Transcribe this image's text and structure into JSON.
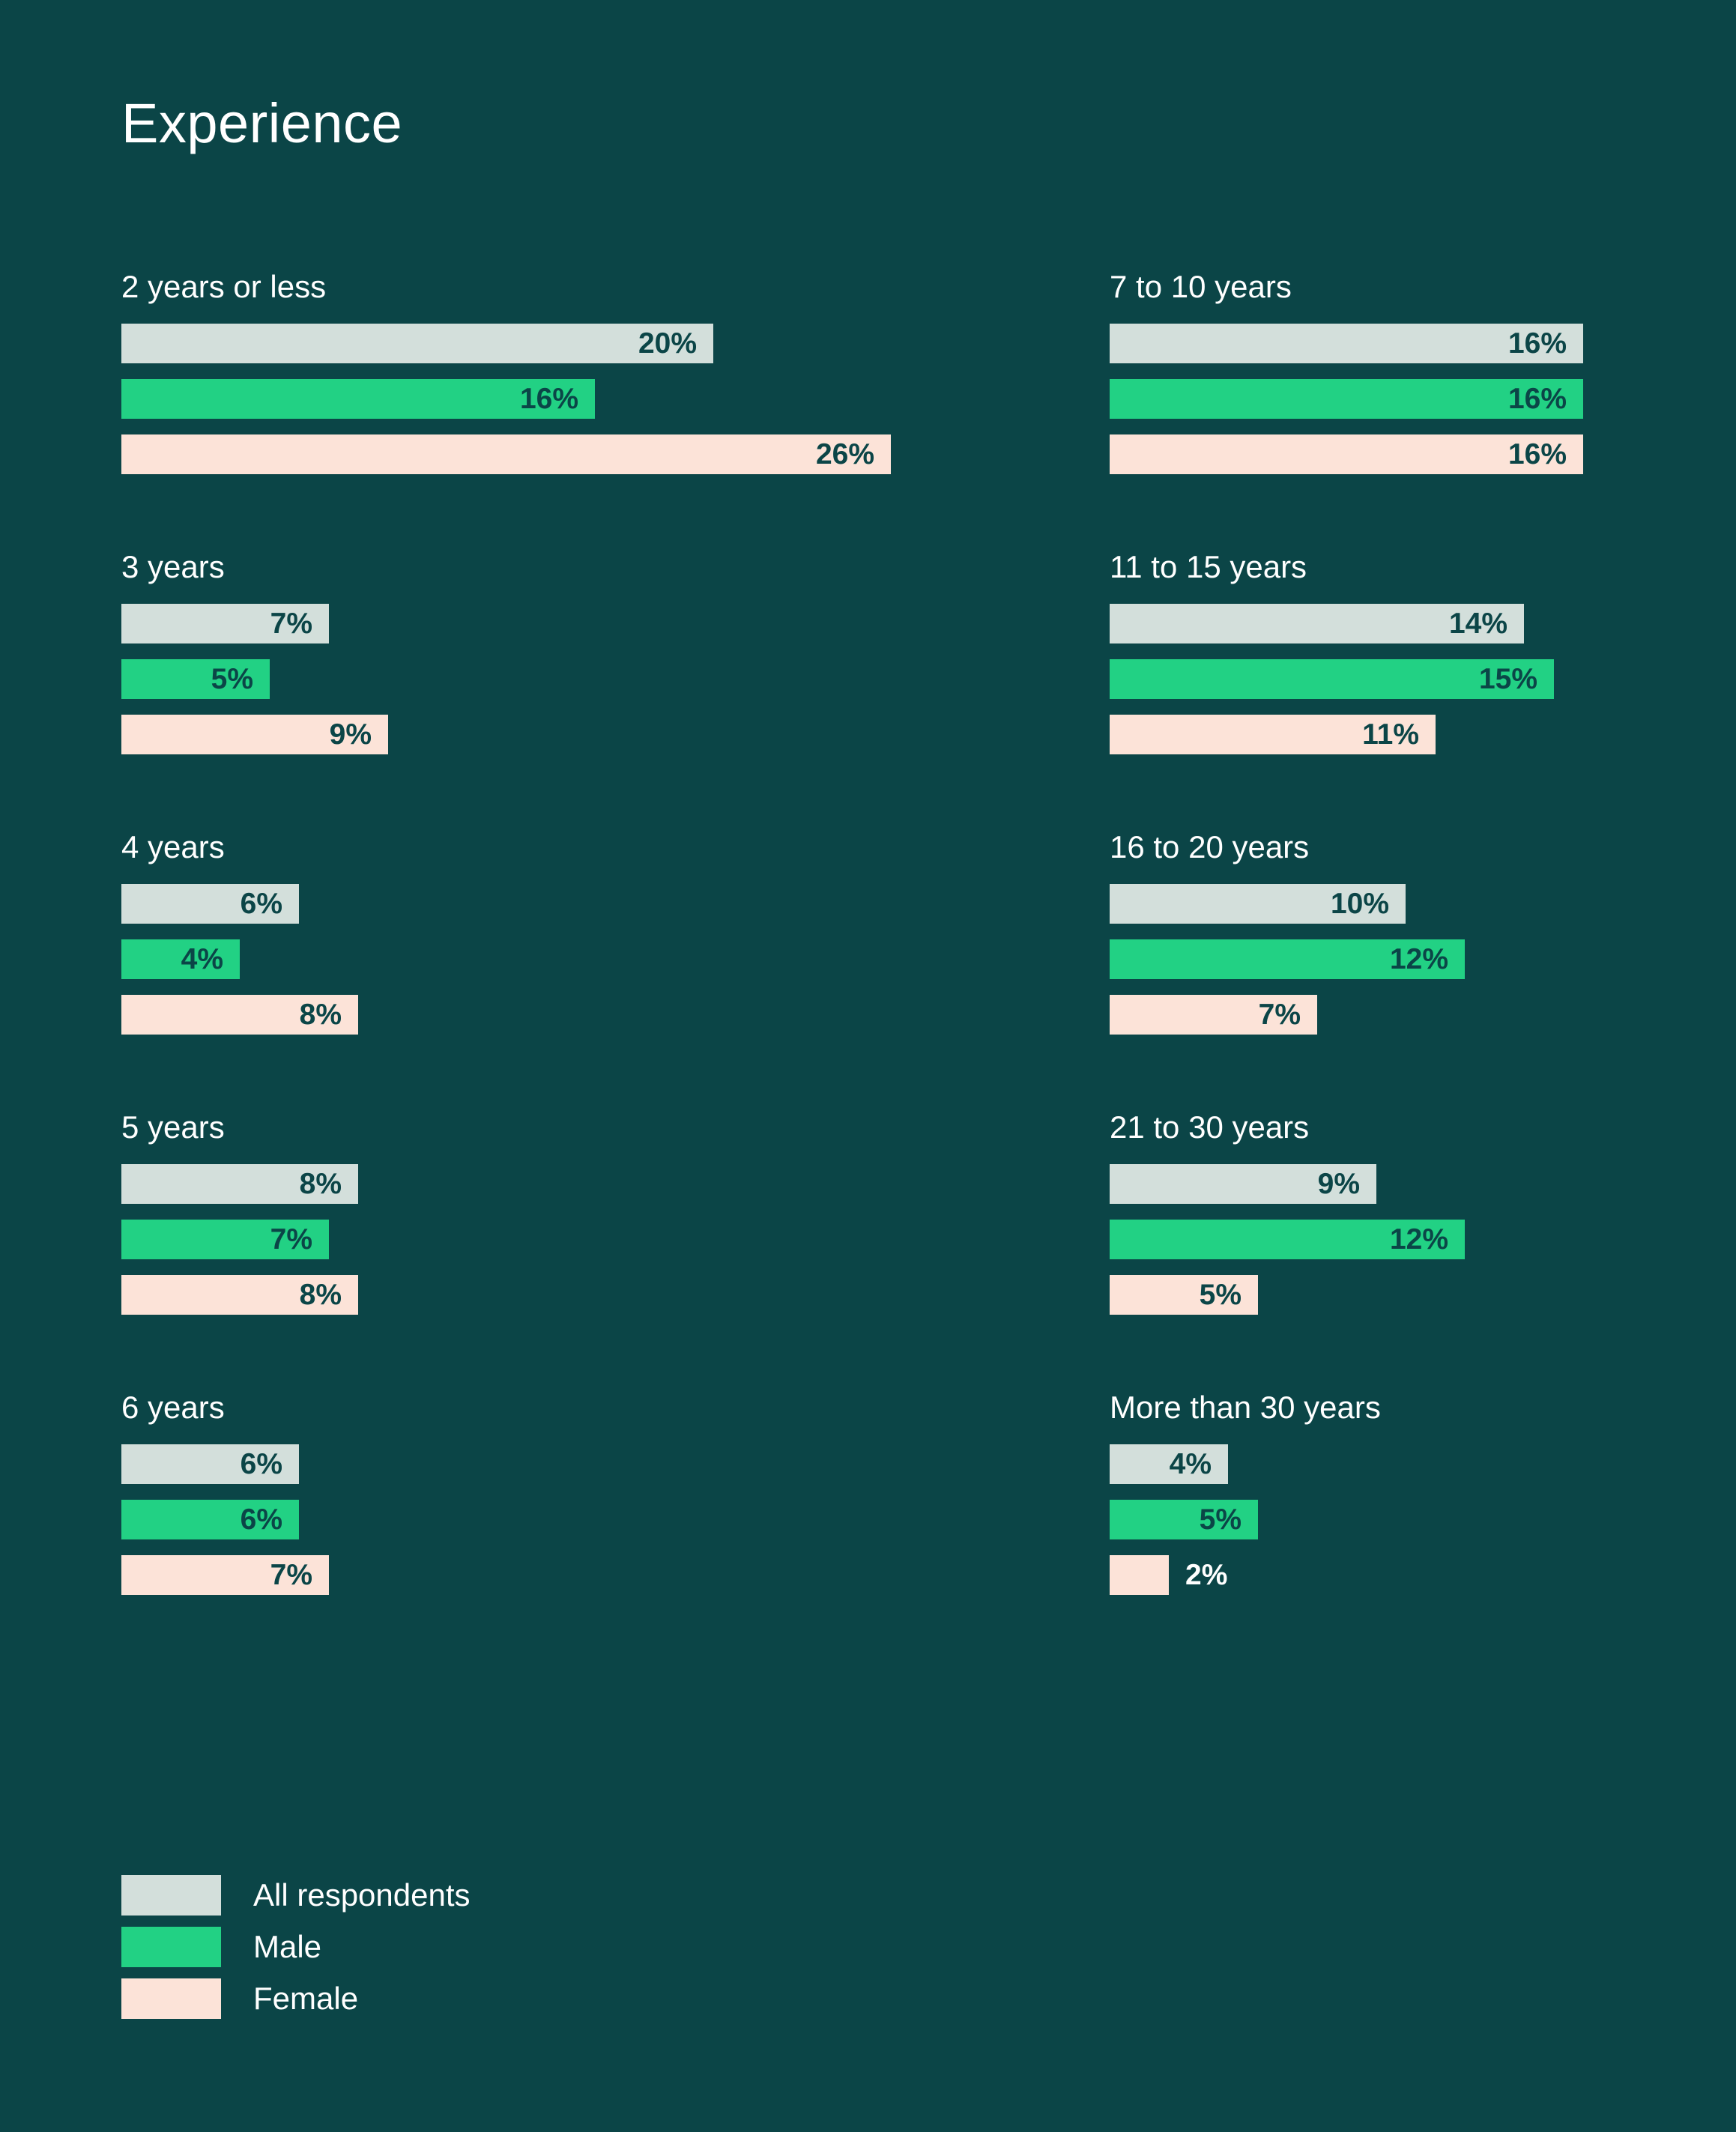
{
  "page": {
    "title": "Experience"
  },
  "colors": {
    "background": "#0b4547",
    "all_respondents": "#d3dfdb",
    "male": "#22d184",
    "female": "#fce3d8",
    "value_text_inside": "#0b4547",
    "value_text_outside": "#ffffff"
  },
  "legend": {
    "items": [
      {
        "label": "All respondents",
        "key": "all_respondents"
      },
      {
        "label": "Male",
        "key": "male"
      },
      {
        "label": "Female",
        "key": "female"
      }
    ]
  },
  "chart_data": {
    "type": "bar",
    "title": "Experience",
    "orientation": "horizontal",
    "series": [
      {
        "name": "All respondents",
        "key": "all_respondents",
        "values": [
          20,
          7,
          6,
          8,
          6,
          16,
          14,
          10,
          9,
          4
        ]
      },
      {
        "name": "Male",
        "key": "male",
        "values": [
          16,
          5,
          4,
          7,
          6,
          16,
          15,
          12,
          12,
          5
        ]
      },
      {
        "name": "Female",
        "key": "female",
        "values": [
          26,
          9,
          8,
          8,
          7,
          16,
          11,
          7,
          5,
          2
        ]
      }
    ],
    "categories": [
      "2 years or less",
      "3 years",
      "4 years",
      "5 years",
      "6 years",
      "7 to 10 years",
      "11 to 15 years",
      "16 to 20 years",
      "21 to 30 years",
      "More than 30 years"
    ],
    "value_suffix": "%",
    "grid": false,
    "legend_position": "bottom-left"
  }
}
